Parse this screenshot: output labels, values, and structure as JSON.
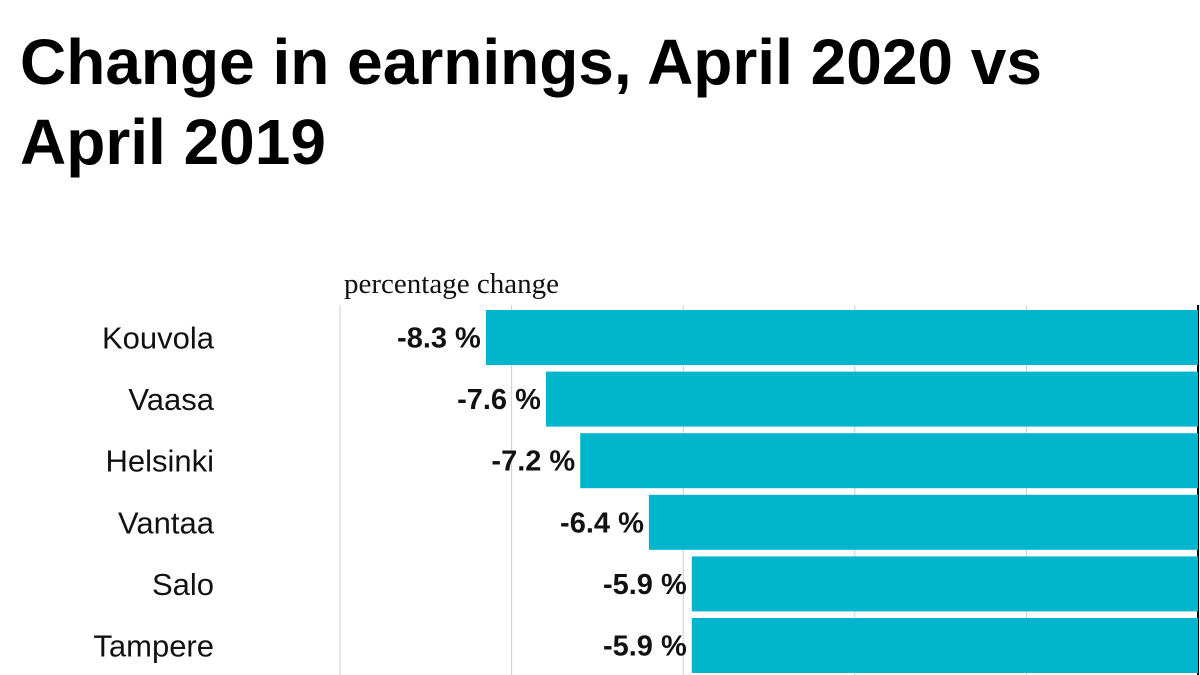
{
  "title": "Change in earnings, April 2020 vs April 2019",
  "chart_data": {
    "type": "bar",
    "orientation": "horizontal",
    "title": "Change in earnings, April 2020 vs April 2019",
    "xlabel": "percentage change",
    "ylabel": "",
    "categories": [
      "Kouvola",
      "Vaasa",
      "Helsinki",
      "Vantaa",
      "Salo",
      "Tampere"
    ],
    "values": [
      -8.3,
      -7.6,
      -7.2,
      -6.4,
      -5.9,
      -5.9
    ],
    "data_labels": [
      "-8.3 %",
      "-7.6 %",
      "-7.2 %",
      "-6.4 %",
      "-5.9 %",
      "-5.9 %"
    ],
    "xlim": [
      -10,
      0
    ],
    "grid": true,
    "bar_color": "#00b5cc"
  }
}
